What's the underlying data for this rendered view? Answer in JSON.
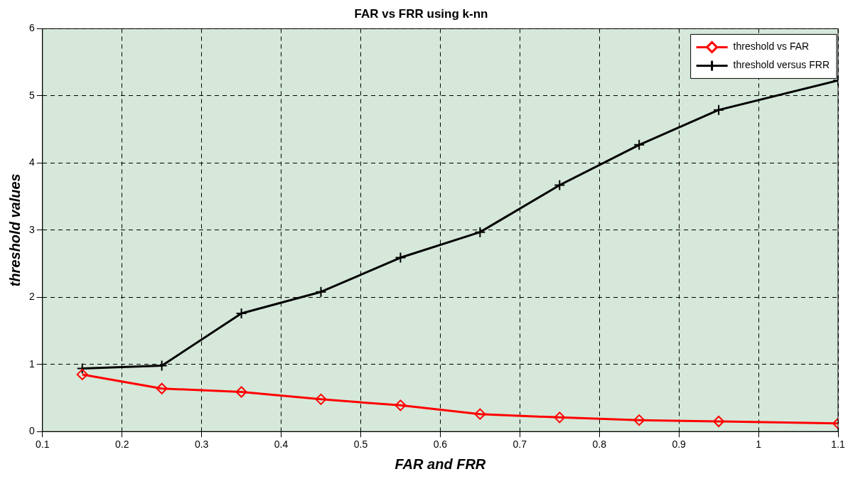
{
  "chart_data": {
    "type": "line",
    "title": "FAR vs FRR using k-nn",
    "xlabel": "FAR and FRR",
    "ylabel": "threshold values",
    "x": [
      0.15,
      0.25,
      0.35,
      0.45,
      0.55,
      0.65,
      0.75,
      0.85,
      0.95,
      1.1
    ],
    "series": [
      {
        "name": "threshold vs FAR",
        "color": "#ff0000",
        "marker": "diamond",
        "values": [
          0.85,
          0.64,
          0.59,
          0.48,
          0.39,
          0.26,
          0.21,
          0.17,
          0.15,
          0.12
        ]
      },
      {
        "name": "threshold versus FRR",
        "color": "#000000",
        "marker": "cross",
        "values": [
          0.94,
          0.98,
          1.76,
          2.08,
          2.59,
          2.97,
          3.67,
          4.27,
          4.79,
          5.23
        ]
      }
    ],
    "xlim": [
      0.1,
      1.1
    ],
    "xticks": [
      0.1,
      0.2,
      0.3,
      0.4,
      0.5,
      0.6,
      0.7,
      0.8,
      0.9,
      1,
      1.1
    ],
    "ylim": [
      0,
      6
    ],
    "yticks": [
      0,
      1,
      2,
      3,
      4,
      5,
      6
    ],
    "grid": true,
    "legend": "top right",
    "line_style": "solid"
  }
}
